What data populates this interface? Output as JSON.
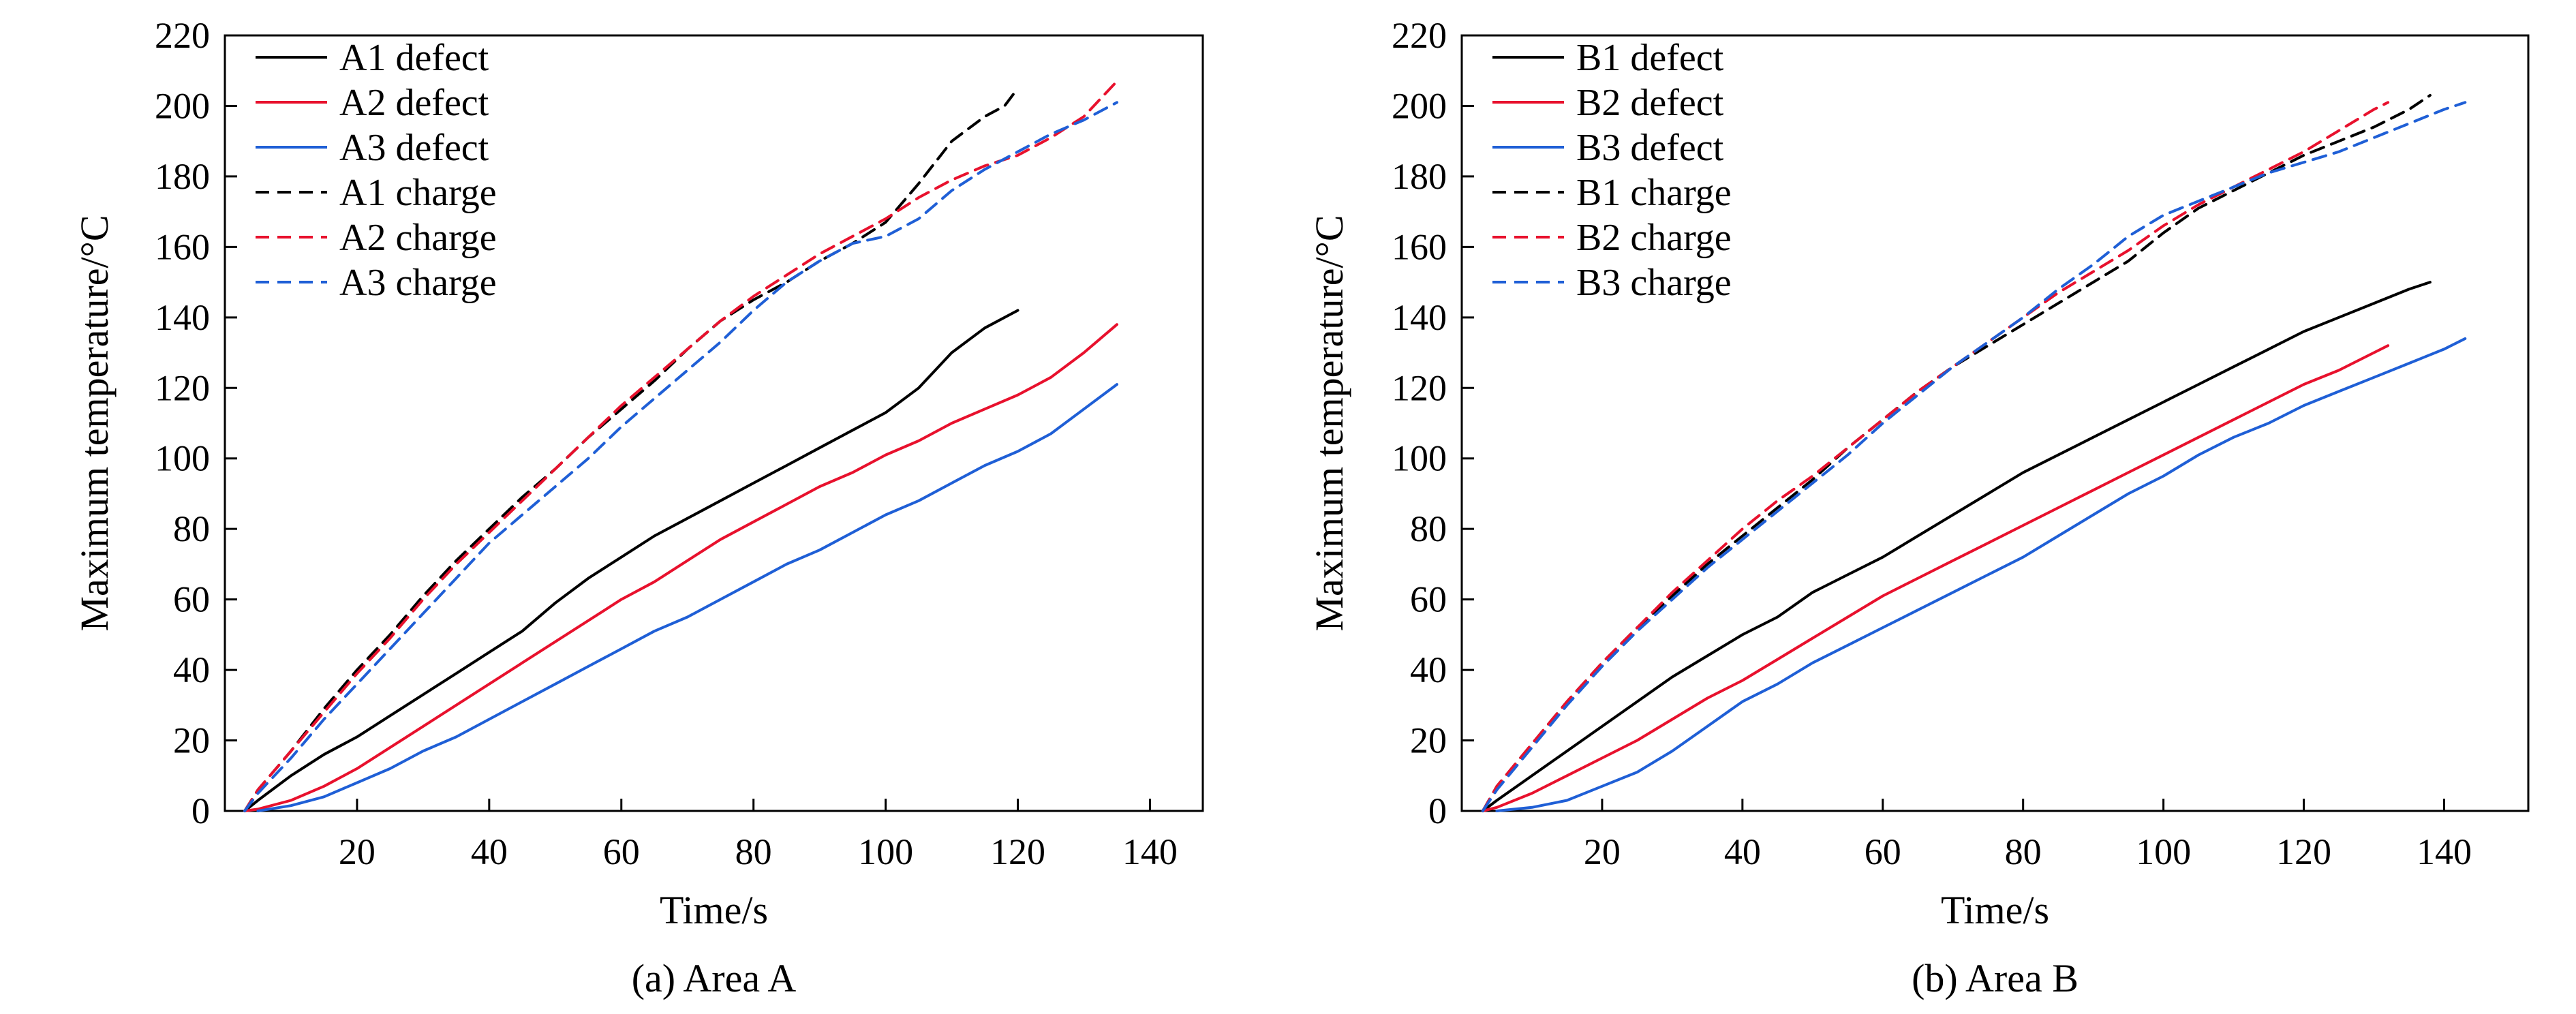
{
  "chart_data": [
    {
      "type": "line",
      "caption": "(a) Area A",
      "xlabel": "Time/s",
      "ylabel": "Maximum temperature/°C",
      "xlim": [
        0,
        148
      ],
      "ylim": [
        0,
        220
      ],
      "xticks": [
        20,
        40,
        60,
        80,
        100,
        120,
        140
      ],
      "yticks": [
        0,
        20,
        40,
        60,
        80,
        100,
        120,
        140,
        160,
        180,
        200,
        220
      ],
      "grid": false,
      "legend_position": "top-left",
      "series": [
        {
          "name": "A1 defect",
          "color": "#000000",
          "dash": "solid",
          "x": [
            3,
            5,
            10,
            15,
            20,
            25,
            30,
            35,
            40,
            45,
            50,
            55,
            60,
            65,
            70,
            75,
            80,
            85,
            90,
            95,
            100,
            105,
            110,
            115,
            120
          ],
          "y": [
            0,
            3,
            10,
            16,
            21,
            27,
            33,
            39,
            45,
            51,
            59,
            66,
            72,
            78,
            83,
            88,
            93,
            98,
            103,
            108,
            113,
            120,
            130,
            137,
            142
          ]
        },
        {
          "name": "A2 defect",
          "color": "#e8112d",
          "dash": "solid",
          "x": [
            3,
            5,
            10,
            15,
            20,
            25,
            30,
            35,
            40,
            45,
            50,
            55,
            60,
            65,
            70,
            75,
            80,
            85,
            90,
            95,
            100,
            105,
            110,
            115,
            120,
            125,
            130,
            135
          ],
          "y": [
            0,
            0.5,
            3,
            7,
            12,
            18,
            24,
            30,
            36,
            42,
            48,
            54,
            60,
            65,
            71,
            77,
            82,
            87,
            92,
            96,
            101,
            105,
            110,
            114,
            118,
            123,
            130,
            138
          ]
        },
        {
          "name": "A3 defect",
          "color": "#1f5fd6",
          "dash": "solid",
          "x": [
            5,
            10,
            15,
            20,
            25,
            30,
            35,
            40,
            45,
            50,
            55,
            60,
            65,
            70,
            75,
            80,
            85,
            90,
            95,
            100,
            105,
            110,
            115,
            120,
            125,
            130,
            135
          ],
          "y": [
            0,
            1.5,
            4,
            8,
            12,
            17,
            21,
            26,
            31,
            36,
            41,
            46,
            51,
            55,
            60,
            65,
            70,
            74,
            79,
            84,
            88,
            93,
            98,
            102,
            107,
            114,
            121
          ]
        },
        {
          "name": "A1 charge",
          "color": "#000000",
          "dash": "dashed",
          "x": [
            3,
            5,
            10,
            15,
            20,
            25,
            30,
            35,
            40,
            45,
            50,
            55,
            60,
            65,
            70,
            75,
            80,
            85,
            90,
            95,
            100,
            105,
            110,
            115,
            118,
            120
          ],
          "y": [
            0,
            6,
            17,
            29,
            40,
            50,
            61,
            71,
            80,
            89,
            97,
            106,
            114,
            122,
            131,
            139,
            145,
            150,
            156,
            161,
            167,
            178,
            190,
            197,
            200,
            205
          ]
        },
        {
          "name": "A2 charge",
          "color": "#e8112d",
          "dash": "dashed",
          "x": [
            3,
            5,
            10,
            15,
            20,
            25,
            30,
            35,
            40,
            45,
            50,
            55,
            60,
            65,
            70,
            75,
            80,
            85,
            90,
            95,
            100,
            105,
            110,
            115,
            120,
            125,
            130,
            135
          ],
          "y": [
            0,
            6,
            17,
            28,
            39,
            49,
            60,
            70,
            79,
            88,
            97,
            106,
            115,
            123,
            131,
            139,
            146,
            152,
            158,
            163,
            168,
            174,
            179,
            183,
            186,
            191,
            197,
            207
          ]
        },
        {
          "name": "A3 charge",
          "color": "#1f5fd6",
          "dash": "dashed",
          "x": [
            3,
            5,
            10,
            15,
            20,
            25,
            30,
            35,
            40,
            45,
            50,
            55,
            60,
            65,
            70,
            75,
            80,
            85,
            90,
            95,
            100,
            105,
            110,
            115,
            120,
            125,
            130,
            135
          ],
          "y": [
            0,
            5,
            15,
            26,
            36,
            46,
            56,
            66,
            76,
            84,
            92,
            100,
            109,
            117,
            125,
            133,
            142,
            150,
            156,
            161,
            163,
            168,
            176,
            182,
            187,
            192,
            196,
            201
          ]
        }
      ]
    },
    {
      "type": "line",
      "caption": "(b) Area B",
      "xlabel": "Time/s",
      "ylabel": "Maximum temperature/°C",
      "xlim": [
        0,
        152
      ],
      "ylim": [
        0,
        220
      ],
      "xticks": [
        20,
        40,
        60,
        80,
        100,
        120,
        140
      ],
      "yticks": [
        0,
        20,
        40,
        60,
        80,
        100,
        120,
        140,
        160,
        180,
        200,
        220
      ],
      "grid": false,
      "legend_position": "top-left",
      "series": [
        {
          "name": "B1 defect",
          "color": "#000000",
          "dash": "solid",
          "x": [
            3,
            5,
            10,
            15,
            20,
            25,
            30,
            35,
            40,
            45,
            50,
            55,
            60,
            65,
            70,
            75,
            80,
            85,
            90,
            95,
            100,
            105,
            110,
            115,
            120,
            125,
            130,
            135,
            138
          ],
          "y": [
            0,
            3,
            10,
            17,
            24,
            31,
            38,
            44,
            50,
            55,
            62,
            67,
            72,
            78,
            84,
            90,
            96,
            101,
            106,
            111,
            116,
            121,
            126,
            131,
            136,
            140,
            144,
            148,
            150
          ]
        },
        {
          "name": "B2 defect",
          "color": "#e8112d",
          "dash": "solid",
          "x": [
            3,
            5,
            10,
            15,
            20,
            25,
            30,
            35,
            40,
            45,
            50,
            55,
            60,
            65,
            70,
            75,
            80,
            85,
            90,
            95,
            100,
            105,
            110,
            115,
            120,
            125,
            130,
            132
          ],
          "y": [
            0,
            1,
            5,
            10,
            15,
            20,
            26,
            32,
            37,
            43,
            49,
            55,
            61,
            66,
            71,
            76,
            81,
            86,
            91,
            96,
            101,
            106,
            111,
            116,
            121,
            125,
            130,
            132
          ]
        },
        {
          "name": "B3 defect",
          "color": "#1f5fd6",
          "dash": "solid",
          "x": [
            5,
            10,
            15,
            20,
            25,
            30,
            35,
            40,
            45,
            50,
            55,
            60,
            65,
            70,
            75,
            80,
            85,
            90,
            95,
            100,
            105,
            110,
            115,
            120,
            125,
            130,
            135,
            140,
            143
          ],
          "y": [
            0,
            1,
            3,
            7,
            11,
            17,
            24,
            31,
            36,
            42,
            47,
            52,
            57,
            62,
            67,
            72,
            78,
            84,
            90,
            95,
            101,
            106,
            110,
            115,
            119,
            123,
            127,
            131,
            134
          ]
        },
        {
          "name": "B1 charge",
          "color": "#000000",
          "dash": "dashed",
          "x": [
            3,
            5,
            10,
            15,
            20,
            25,
            30,
            35,
            40,
            45,
            50,
            55,
            60,
            65,
            70,
            75,
            80,
            85,
            90,
            95,
            100,
            105,
            110,
            115,
            120,
            125,
            130,
            135,
            138
          ],
          "y": [
            0,
            7,
            19,
            31,
            42,
            52,
            61,
            70,
            78,
            86,
            94,
            103,
            111,
            119,
            126,
            132,
            138,
            144,
            150,
            156,
            164,
            171,
            176,
            181,
            186,
            190,
            194,
            199,
            203
          ]
        },
        {
          "name": "B2 charge",
          "color": "#e8112d",
          "dash": "dashed",
          "x": [
            3,
            5,
            10,
            15,
            20,
            25,
            30,
            35,
            40,
            45,
            50,
            55,
            60,
            65,
            70,
            75,
            80,
            85,
            90,
            95,
            100,
            105,
            110,
            115,
            120,
            125,
            130,
            132
          ],
          "y": [
            0,
            7,
            19,
            31,
            42,
            52,
            62,
            71,
            80,
            88,
            95,
            103,
            111,
            119,
            126,
            133,
            140,
            147,
            153,
            159,
            166,
            172,
            177,
            182,
            187,
            193,
            199,
            201
          ]
        },
        {
          "name": "B3 charge",
          "color": "#1f5fd6",
          "dash": "dashed",
          "x": [
            3,
            5,
            10,
            15,
            20,
            25,
            30,
            35,
            40,
            45,
            50,
            55,
            60,
            65,
            70,
            75,
            80,
            85,
            90,
            95,
            100,
            105,
            110,
            115,
            120,
            125,
            130,
            135,
            140,
            143
          ],
          "y": [
            0,
            6,
            18,
            30,
            41,
            51,
            60,
            69,
            77,
            85,
            93,
            101,
            110,
            118,
            126,
            133,
            140,
            148,
            155,
            163,
            169,
            173,
            177,
            181,
            184,
            187,
            191,
            195,
            199,
            201
          ]
        }
      ]
    }
  ]
}
